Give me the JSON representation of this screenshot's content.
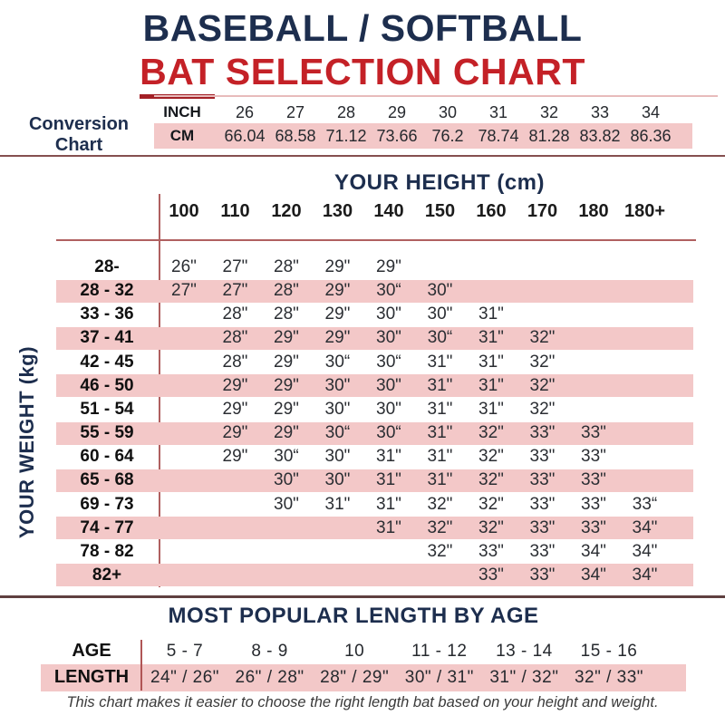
{
  "title": {
    "line1": "BASEBALL / SOFTBALL",
    "line2_bat": "BAT",
    "line2_rest": "SELECTION CHART"
  },
  "colors": {
    "navy": "#1d2e4e",
    "red": "#c42127",
    "bat_underline": "#a32026",
    "pink_row": "#f3c8c8",
    "grid_red": "#b06060",
    "dark_divider": "#5f4040"
  },
  "chart_data": [
    {
      "type": "table",
      "name": "conversion_chart",
      "label": "Conversion Chart",
      "row_headers": [
        "INCH",
        "CM"
      ],
      "inch": [
        "26",
        "27",
        "28",
        "29",
        "30",
        "31",
        "32",
        "33",
        "34"
      ],
      "cm": [
        "66.04",
        "68.58",
        "71.12",
        "73.66",
        "76.2",
        "78.74",
        "81.28",
        "83.82",
        "86.36"
      ]
    },
    {
      "type": "table",
      "name": "bat_selection_matrix",
      "column_axis_label": "YOUR HEIGHT (cm)",
      "row_axis_label": "YOUR WEIGHT (kg)",
      "columns": [
        "100",
        "110",
        "120",
        "130",
        "140",
        "150",
        "160",
        "170",
        "180",
        "180+"
      ],
      "rows": [
        {
          "label": "28-",
          "start": 0,
          "pink": false,
          "values": [
            "26\"",
            "27\"",
            "28\"",
            "29\"",
            "29\""
          ]
        },
        {
          "label": "28 - 32",
          "start": 0,
          "pink": true,
          "values": [
            "27\"",
            "27\"",
            "28\"",
            "29\"",
            "30“",
            "30\""
          ]
        },
        {
          "label": "33 - 36",
          "start": 1,
          "pink": false,
          "values": [
            "28\"",
            "28\"",
            "29\"",
            "30\"",
            "30\"",
            "31\""
          ]
        },
        {
          "label": "37 - 41",
          "start": 1,
          "pink": true,
          "values": [
            "28\"",
            "29\"",
            "29\"",
            "30\"",
            "30“",
            "31\"",
            "32\""
          ]
        },
        {
          "label": "42 - 45",
          "start": 1,
          "pink": false,
          "values": [
            "28\"",
            "29\"",
            "30“",
            "30“",
            "31\"",
            "31\"",
            "32\""
          ]
        },
        {
          "label": "46 - 50",
          "start": 1,
          "pink": true,
          "values": [
            "29\"",
            "29\"",
            "30\"",
            "30\"",
            "31\"",
            "31\"",
            "32\""
          ]
        },
        {
          "label": "51 - 54",
          "start": 1,
          "pink": false,
          "values": [
            "29\"",
            "29\"",
            "30\"",
            "30\"",
            "31\"",
            "31\"",
            "32\""
          ]
        },
        {
          "label": "55 - 59",
          "start": 1,
          "pink": true,
          "values": [
            "29\"",
            "29\"",
            "30“",
            "30“",
            "31\"",
            "32\"",
            "33\"",
            "33\""
          ]
        },
        {
          "label": "60 - 64",
          "start": 1,
          "pink": false,
          "values": [
            "29\"",
            "30“",
            "30\"",
            "31\"",
            "31\"",
            "32\"",
            "33\"",
            "33\""
          ]
        },
        {
          "label": "65 - 68",
          "start": 2,
          "pink": true,
          "values": [
            "30\"",
            "30\"",
            "31\"",
            "31\"",
            "32\"",
            "33\"",
            "33\""
          ]
        },
        {
          "label": "69 - 73",
          "start": 2,
          "pink": false,
          "values": [
            "30\"",
            "31\"",
            "31\"",
            "32\"",
            "32\"",
            "33\"",
            "33\"",
            "33“"
          ]
        },
        {
          "label": "74 - 77",
          "start": 4,
          "pink": true,
          "values": [
            "31\"",
            "32\"",
            "32\"",
            "33\"",
            "33\"",
            "34\""
          ]
        },
        {
          "label": "78 - 82",
          "start": 5,
          "pink": false,
          "values": [
            "32\"",
            "33\"",
            "33\"",
            "34\"",
            "34\""
          ]
        },
        {
          "label": "82+",
          "start": 6,
          "pink": true,
          "values": [
            "33\"",
            "33\"",
            "34\"",
            "34\""
          ]
        }
      ]
    },
    {
      "type": "table",
      "name": "popular_length_by_age",
      "title": "MOST POPULAR LENGTH BY AGE",
      "age_label": "AGE",
      "length_label": "LENGTH",
      "ages": [
        "5 - 7",
        "8 - 9",
        "10",
        "11 - 12",
        "13 - 14",
        "15 - 16"
      ],
      "lengths": [
        "24\" / 26\"",
        "26\" / 28\"",
        "28\" / 29\"",
        "30\" / 31\"",
        "31\" / 32\"",
        "32\" / 33\""
      ]
    }
  ],
  "footer": "This chart makes it easier to choose the right length bat based on your height and weight."
}
